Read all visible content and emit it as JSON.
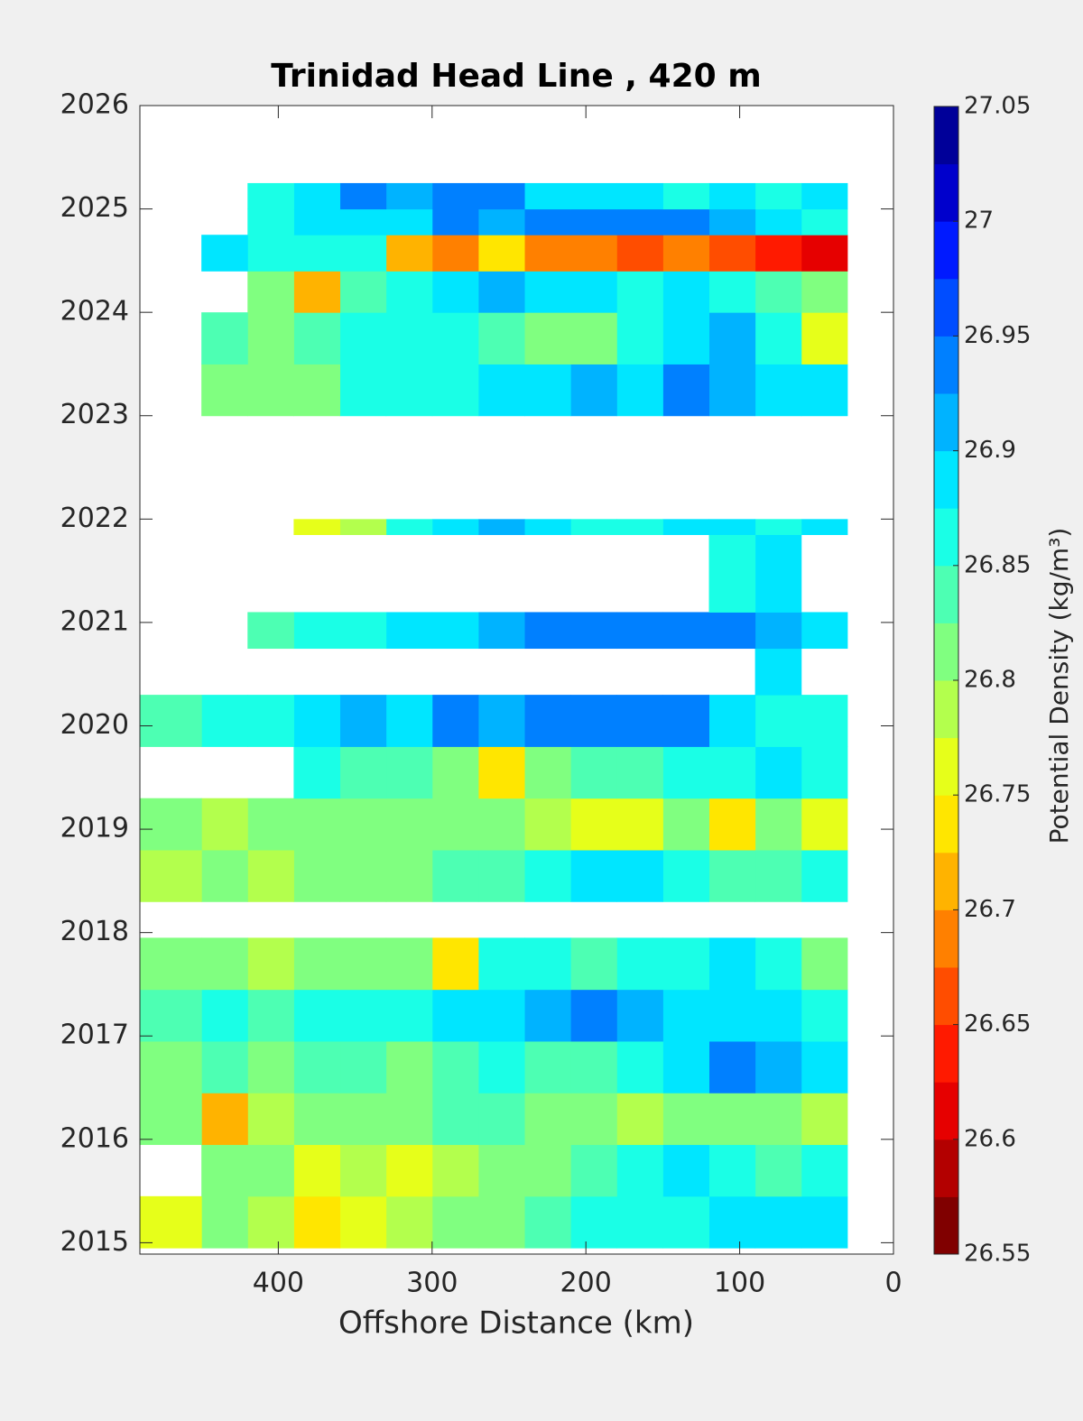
{
  "chart_data": {
    "type": "contour",
    "title": "Trinidad Head Line , 420 m",
    "xlabel": "Offshore Distance (km)",
    "colorbar_label": "Potential Density (kg/m³)",
    "xlim": [
      490,
      0
    ],
    "xticks": [
      400,
      300,
      200,
      100,
      0
    ],
    "ylim": [
      2014.89,
      2026
    ],
    "yticks": [
      2015,
      2016,
      2017,
      2018,
      2019,
      2020,
      2021,
      2022,
      2023,
      2024,
      2025,
      2026
    ],
    "clim": [
      26.55,
      27.05
    ],
    "cticks": [
      26.55,
      26.6,
      26.65,
      26.7,
      26.75,
      26.8,
      26.85,
      26.9,
      26.95,
      27,
      27.05
    ],
    "colormap": [
      "#800000",
      "#b30000",
      "#e60000",
      "#ff1a00",
      "#ff4d00",
      "#ff8000",
      "#ffb300",
      "#ffe600",
      "#e6ff1a",
      "#b3ff4d",
      "#80ff80",
      "#4dffb3",
      "#1affe6",
      "#00e6ff",
      "#00b3ff",
      "#0080ff",
      "#004dff",
      "#001aff",
      "#0000cc",
      "#000099"
    ],
    "xedges": [
      30,
      60,
      90,
      120,
      150,
      180,
      210,
      240,
      270,
      300,
      330,
      360,
      390,
      420,
      450,
      490
    ],
    "yedges": [
      2014.95,
      2015.45,
      2015.95,
      2016.45,
      2016.95,
      2017.45,
      2017.95,
      2018.3,
      2018.8,
      2019.3,
      2019.8,
      2020.3,
      2020.75,
      2021.1,
      2021.85,
      2022.0,
      2023.0,
      2023.5,
      2024.0,
      2024.4,
      2024.75,
      2025.0,
      2025.25
    ],
    "z": [
      [
        26.88,
        26.9,
        26.89,
        26.87,
        26.86,
        26.85,
        26.84,
        26.82,
        26.8,
        26.79,
        26.77,
        26.75,
        26.78,
        26.8,
        26.76
      ],
      [
        26.85,
        26.84,
        26.86,
        26.88,
        26.86,
        26.83,
        26.8,
        26.81,
        26.78,
        26.77,
        26.79,
        26.76,
        26.8,
        26.8,
        null
      ],
      [
        26.78,
        26.8,
        26.82,
        26.81,
        26.79,
        26.8,
        26.82,
        26.84,
        26.83,
        26.81,
        26.8,
        26.81,
        26.79,
        26.72,
        26.8
      ],
      [
        26.88,
        26.92,
        26.93,
        26.9,
        26.86,
        26.84,
        26.83,
        26.85,
        26.84,
        26.82,
        26.83,
        26.84,
        26.82,
        26.83,
        26.81
      ],
      [
        26.86,
        26.9,
        26.88,
        26.89,
        26.92,
        26.93,
        26.91,
        26.9,
        26.88,
        26.87,
        26.86,
        26.85,
        26.84,
        26.86,
        26.83
      ],
      [
        26.8,
        26.87,
        26.9,
        26.86,
        26.85,
        26.84,
        26.86,
        26.85,
        26.75,
        26.8,
        26.81,
        26.8,
        26.79,
        26.8,
        26.8
      ],
      [
        null,
        null,
        null,
        null,
        null,
        null,
        null,
        null,
        null,
        null,
        null,
        null,
        null,
        null,
        null
      ],
      [
        26.86,
        26.83,
        26.84,
        26.85,
        26.89,
        26.9,
        26.86,
        26.84,
        26.83,
        26.82,
        26.81,
        26.8,
        26.79,
        26.8,
        26.78
      ],
      [
        26.76,
        26.8,
        26.75,
        26.8,
        26.77,
        26.76,
        26.79,
        26.8,
        26.81,
        26.82,
        26.8,
        26.81,
        26.8,
        26.79,
        26.81
      ],
      [
        26.87,
        26.9,
        26.86,
        26.85,
        26.84,
        26.83,
        26.82,
        26.75,
        26.81,
        26.83,
        26.84,
        26.85,
        null,
        null,
        null
      ],
      [
        26.87,
        26.86,
        26.9,
        26.93,
        26.94,
        26.95,
        26.94,
        26.92,
        26.93,
        26.9,
        26.91,
        26.9,
        26.87,
        26.86,
        26.84
      ],
      [
        null,
        26.9,
        null,
        null,
        null,
        null,
        null,
        null,
        null,
        null,
        null,
        null,
        null,
        null,
        null
      ],
      [
        26.9,
        26.92,
        26.93,
        26.94,
        26.95,
        26.93,
        26.94,
        26.92,
        26.9,
        26.88,
        26.87,
        26.86,
        26.83,
        null,
        null
      ],
      [
        null,
        26.88,
        26.86,
        null,
        null,
        null,
        null,
        null,
        null,
        null,
        null,
        null,
        null,
        null,
        null
      ],
      [
        26.88,
        26.87,
        26.89,
        26.88,
        26.86,
        26.87,
        26.9,
        26.92,
        26.9,
        26.85,
        26.78,
        26.76,
        null,
        null,
        null
      ],
      [
        null,
        null,
        null,
        null,
        null,
        null,
        null,
        null,
        null,
        null,
        null,
        null,
        null,
        null,
        null
      ],
      [
        26.88,
        26.9,
        26.92,
        26.93,
        26.9,
        26.91,
        26.89,
        26.88,
        26.87,
        26.86,
        26.85,
        26.82,
        26.8,
        26.81,
        null
      ],
      [
        26.76,
        26.86,
        26.92,
        26.88,
        26.86,
        26.8,
        26.82,
        26.84,
        26.85,
        26.86,
        26.87,
        26.83,
        26.82,
        26.84,
        null
      ],
      [
        26.8,
        26.84,
        26.87,
        26.88,
        26.86,
        26.88,
        26.9,
        26.91,
        26.88,
        26.86,
        26.84,
        26.72,
        26.8,
        null,
        null
      ],
      [
        26.6,
        26.65,
        26.67,
        26.68,
        26.66,
        26.68,
        26.7,
        26.74,
        26.68,
        26.72,
        26.85,
        26.86,
        26.87,
        26.88,
        null
      ],
      [
        26.86,
        26.9,
        26.92,
        26.93,
        26.94,
        26.94,
        26.95,
        26.92,
        26.93,
        26.9,
        26.88,
        26.9,
        26.87,
        null,
        null
      ],
      [
        26.9,
        26.86,
        26.88,
        26.87,
        26.88,
        26.89,
        26.9,
        26.93,
        26.95,
        26.92,
        26.93,
        26.88,
        26.87,
        null,
        null
      ]
    ]
  }
}
